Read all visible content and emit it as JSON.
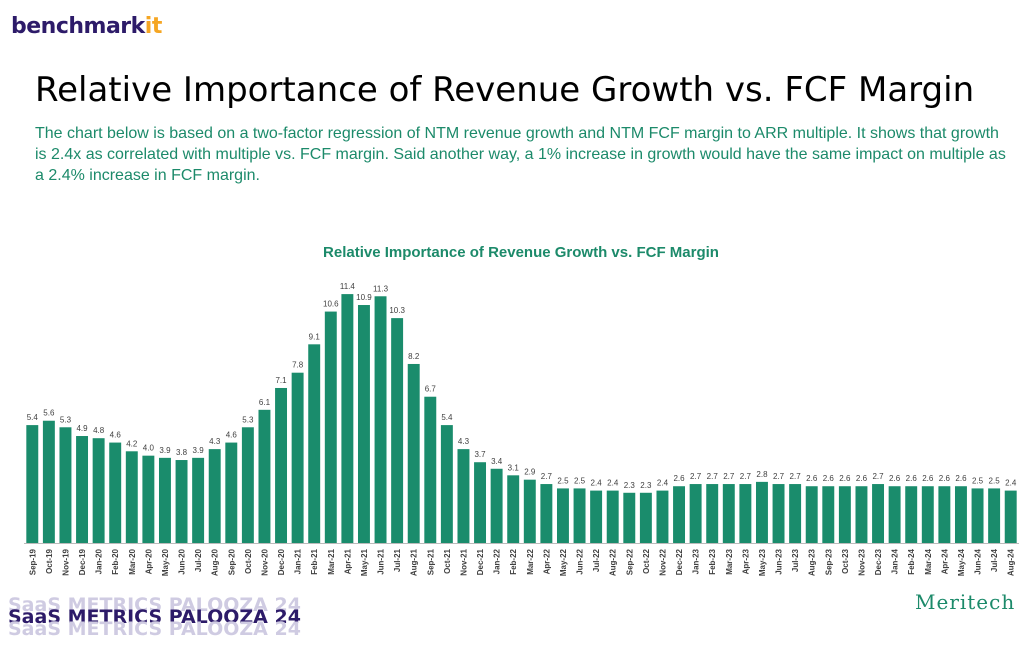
{
  "brand": {
    "name": "benchmark",
    "accent": "it"
  },
  "title": "Relative Importance of Revenue Growth vs. FCF Margin",
  "subtitle": "The chart below is based on a two-factor regression of NTM revenue growth and NTM FCF margin to ARR multiple. It shows that growth is 2.4x as correlated with multiple vs. FCF margin. Said another way, a 1% increase in growth would have the same impact on multiple as a 2.4% increase in FCF margin.",
  "footer": {
    "event": "SaaS METRICS PALOOZA 24",
    "firm": "Meritech"
  },
  "colors": {
    "bar": "#1a8c6c",
    "title_green": "#1c8a6a",
    "brand_purple": "#2d1b69",
    "brand_orange": "#f5a623"
  },
  "chart_data": {
    "type": "bar",
    "title": "Relative Importance of Revenue Growth vs. FCF Margin",
    "xlabel": "",
    "ylabel": "",
    "ylim": [
      0,
      12
    ],
    "grid": false,
    "categories": [
      "Sep-19",
      "Oct-19",
      "Nov-19",
      "Dec-19",
      "Jan-20",
      "Feb-20",
      "Mar-20",
      "Apr-20",
      "May-20",
      "Jun-20",
      "Jul-20",
      "Aug-20",
      "Sep-20",
      "Oct-20",
      "Nov-20",
      "Dec-20",
      "Jan-21",
      "Feb-21",
      "Mar-21",
      "Apr-21",
      "May-21",
      "Jun-21",
      "Jul-21",
      "Aug-21",
      "Sep-21",
      "Oct-21",
      "Nov-21",
      "Dec-21",
      "Jan-22",
      "Feb-22",
      "Mar-22",
      "Apr-22",
      "May-22",
      "Jun-22",
      "Jul-22",
      "Aug-22",
      "Sep-22",
      "Oct-22",
      "Nov-22",
      "Dec-22",
      "Jan-23",
      "Feb-23",
      "Mar-23",
      "Apr-23",
      "May-23",
      "Jun-23",
      "Jul-23",
      "Aug-23",
      "Sep-23",
      "Oct-23",
      "Nov-23",
      "Dec-23",
      "Jan-24",
      "Feb-24",
      "Mar-24",
      "Apr-24",
      "May-24",
      "Jun-24",
      "Jul-24",
      "Aug-24"
    ],
    "values": [
      5.4,
      5.6,
      5.3,
      4.9,
      4.8,
      4.6,
      4.2,
      4.0,
      3.9,
      3.8,
      3.9,
      4.3,
      4.6,
      5.3,
      6.1,
      7.1,
      7.8,
      9.1,
      10.6,
      11.4,
      10.9,
      11.3,
      10.3,
      8.2,
      6.7,
      5.4,
      4.3,
      3.7,
      3.4,
      3.1,
      2.9,
      2.7,
      2.5,
      2.5,
      2.4,
      2.4,
      2.3,
      2.3,
      2.4,
      2.6,
      2.7,
      2.7,
      2.7,
      2.7,
      2.8,
      2.7,
      2.7,
      2.6,
      2.6,
      2.6,
      2.6,
      2.7,
      2.6,
      2.6,
      2.6,
      2.6,
      2.6,
      2.5,
      2.5,
      2.4
    ],
    "labels": [
      "5.4",
      "5.6",
      "5.3",
      "4.9",
      "4.8",
      "4.6",
      "4.2",
      "4.0",
      "3.9",
      "3.8",
      "3.9",
      "4.3",
      "4.6",
      "5.3",
      "6.1",
      "7.1",
      "7.8",
      "9.1",
      "10.6",
      "11.4",
      "10.9",
      "11.3",
      "10.3",
      "8.2",
      "6.7",
      "5.4",
      "4.3",
      "3.7",
      "3.4",
      "3.1",
      "2.9",
      "2.7",
      "2.5",
      "2.5",
      "2.4",
      "2.4",
      "2.3",
      "2.3",
      "2.4",
      "2.6",
      "2.7",
      "2.7",
      "2.7",
      "2.7",
      "2.8",
      "2.7",
      "2.7",
      "2.6",
      "2.6",
      "2.6",
      "2.6",
      "2.7",
      "2.6",
      "2.6",
      "2.6",
      "2.6",
      "2.6",
      "2.5",
      "2.5",
      "2.4"
    ]
  }
}
